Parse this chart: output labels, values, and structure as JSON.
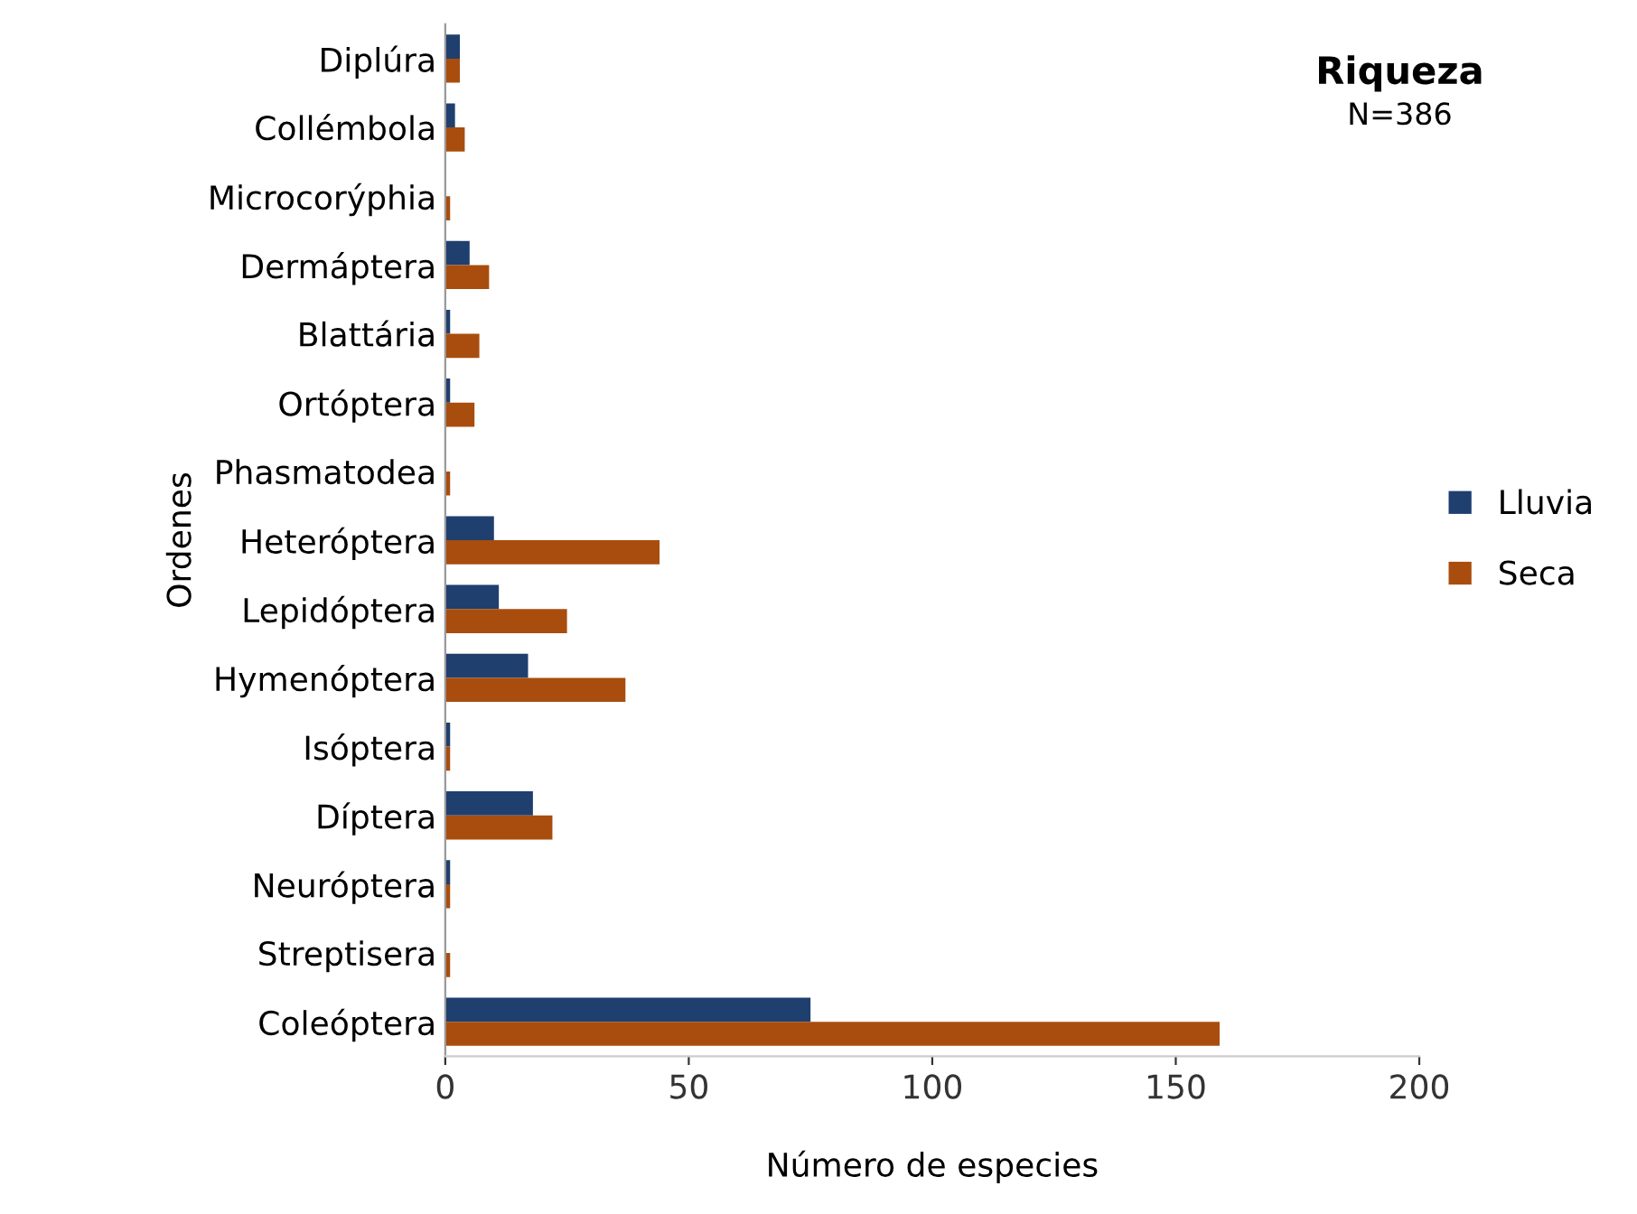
{
  "chart_data": {
    "type": "bar",
    "orientation": "horizontal",
    "title": "Riqueza",
    "subtitle": "N=386",
    "xlabel": "Número de especies",
    "ylabel": "Ordenes",
    "categories": [
      "Diplúra",
      "Collémbola",
      "Microcorýphia",
      "Dermáptera",
      "Blattária",
      "Ortóptera",
      "Phasmatodea",
      "Heteróptera",
      "Lepidóptera",
      "Hymenóptera",
      "Isóptera",
      "Díptera",
      "Neuróptera",
      "Streptisera",
      "Coleóptera"
    ],
    "series": [
      {
        "name": "Lluvia",
        "color": "#1f3f6e",
        "values": [
          3,
          2,
          0,
          5,
          1,
          1,
          0,
          10,
          11,
          17,
          1,
          18,
          1,
          0,
          75
        ]
      },
      {
        "name": "Seca",
        "color": "#a94d0e",
        "values": [
          3,
          4,
          1,
          9,
          7,
          6,
          1,
          44,
          25,
          37,
          1,
          22,
          1,
          1,
          159
        ]
      }
    ],
    "xlim": [
      0,
      200
    ],
    "xticks": [
      0,
      50,
      100,
      150,
      200
    ],
    "grid": false,
    "legend": "right"
  }
}
